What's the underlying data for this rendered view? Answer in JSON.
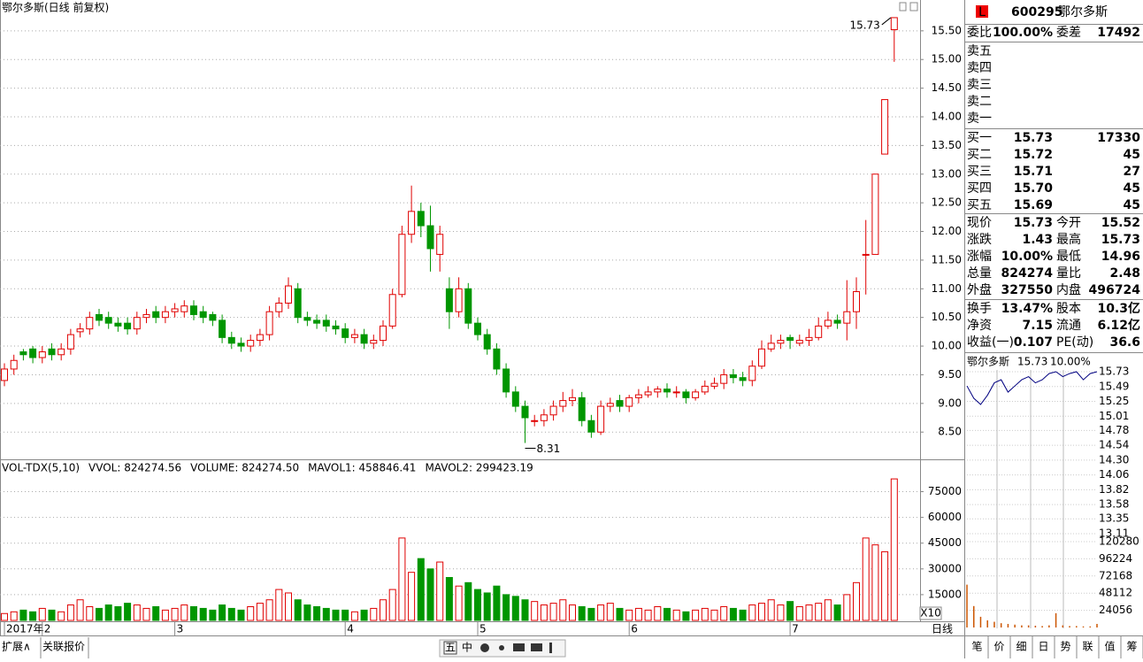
{
  "chart_data": [
    {
      "type": "candlestick",
      "title": "鄂尔多斯(日线 前复权)",
      "categories": [
        "2017年",
        null,
        null,
        null,
        "2",
        null,
        null,
        null,
        null,
        null,
        null,
        null,
        null,
        null,
        null,
        null,
        null,
        null,
        "3",
        null,
        null,
        null,
        null,
        null,
        null,
        null,
        null,
        null,
        null,
        null,
        null,
        null,
        null,
        null,
        null,
        null,
        "4",
        null,
        null,
        null,
        null,
        null,
        null,
        null,
        null,
        null,
        null,
        null,
        null,
        null,
        "5",
        null,
        null,
        null,
        null,
        null,
        null,
        null,
        null,
        null,
        null,
        null,
        null,
        null,
        null,
        null,
        "6",
        null,
        null,
        null,
        null,
        null,
        null,
        null,
        null,
        null,
        null,
        null,
        null,
        null,
        null,
        null,
        null,
        "7",
        null,
        null,
        null,
        null,
        null,
        null,
        null,
        null,
        null,
        null,
        null
      ],
      "open": [
        9.4,
        9.6,
        9.9,
        9.95,
        9.8,
        9.95,
        9.85,
        9.95,
        10.25,
        10.3,
        10.55,
        10.5,
        10.4,
        10.4,
        10.3,
        10.5,
        10.6,
        10.5,
        10.6,
        10.6,
        10.7,
        10.6,
        10.55,
        10.45,
        10.15,
        10.05,
        10.0,
        10.1,
        10.2,
        10.6,
        10.75,
        11.0,
        10.5,
        10.45,
        10.45,
        10.35,
        10.3,
        10.15,
        10.2,
        10.05,
        10.1,
        10.35,
        10.9,
        11.95,
        12.35,
        12.1,
        11.6,
        11.0,
        10.6,
        11.0,
        10.4,
        10.2,
        9.95,
        9.6,
        9.2,
        8.95,
        8.7,
        8.7,
        8.8,
        8.95,
        9.05,
        9.1,
        8.7,
        8.5,
        8.95,
        9.05,
        8.95,
        9.1,
        9.15,
        9.2,
        9.25,
        9.2,
        9.2,
        9.1,
        9.2,
        9.3,
        9.35,
        9.5,
        9.45,
        9.4,
        9.65,
        9.95,
        10.05,
        10.15,
        10.05,
        10.1,
        10.15,
        10.35,
        10.45,
        10.4,
        10.6,
        11.6,
        11.6,
        13.35,
        15.52
      ],
      "high": [
        9.7,
        9.85,
        9.95,
        10.0,
        10.0,
        10.05,
        10.05,
        10.3,
        10.4,
        10.6,
        10.65,
        10.6,
        10.5,
        10.5,
        10.6,
        10.65,
        10.7,
        10.7,
        10.75,
        10.8,
        10.8,
        10.7,
        10.6,
        10.55,
        10.25,
        10.15,
        10.2,
        10.3,
        10.7,
        10.85,
        11.2,
        11.1,
        10.6,
        10.55,
        10.55,
        10.45,
        10.4,
        10.3,
        10.3,
        10.2,
        10.45,
        11.0,
        12.1,
        12.8,
        12.5,
        12.45,
        12.1,
        11.2,
        11.2,
        11.1,
        10.5,
        10.3,
        10.05,
        9.7,
        9.3,
        9.05,
        8.8,
        8.9,
        9.05,
        9.2,
        9.25,
        9.2,
        8.8,
        9.05,
        9.1,
        9.15,
        9.15,
        9.25,
        9.3,
        9.3,
        9.35,
        9.3,
        9.25,
        9.25,
        9.4,
        9.45,
        9.6,
        9.6,
        9.55,
        9.75,
        10.1,
        10.2,
        10.2,
        10.2,
        10.2,
        10.3,
        10.5,
        10.6,
        10.55,
        11.15,
        11.2,
        12.2,
        13.0,
        14.3,
        15.73
      ],
      "low": [
        9.3,
        9.5,
        9.75,
        9.7,
        9.7,
        9.75,
        9.75,
        9.85,
        10.15,
        10.2,
        10.35,
        10.3,
        10.25,
        10.2,
        10.2,
        10.4,
        10.4,
        10.4,
        10.5,
        10.5,
        10.45,
        10.4,
        10.35,
        10.05,
        9.95,
        9.9,
        9.9,
        10.0,
        10.1,
        10.5,
        10.65,
        10.4,
        10.35,
        10.3,
        10.25,
        10.2,
        10.05,
        10.05,
        9.95,
        9.95,
        10.0,
        10.3,
        10.85,
        11.8,
        11.9,
        11.3,
        11.3,
        10.3,
        10.5,
        10.3,
        10.1,
        9.85,
        9.5,
        9.1,
        8.85,
        8.31,
        8.6,
        8.6,
        8.7,
        8.85,
        8.95,
        8.6,
        8.4,
        8.45,
        8.85,
        8.85,
        8.85,
        9.0,
        9.1,
        9.1,
        9.1,
        9.1,
        9.0,
        9.05,
        9.15,
        9.25,
        9.25,
        9.35,
        9.3,
        9.3,
        9.6,
        9.9,
        9.95,
        9.95,
        10.0,
        10.0,
        10.1,
        10.3,
        10.3,
        10.1,
        10.3,
        10.9,
        11.6,
        13.35,
        14.96
      ],
      "close": [
        9.6,
        9.75,
        9.85,
        9.8,
        9.9,
        9.85,
        9.95,
        10.2,
        10.3,
        10.5,
        10.45,
        10.4,
        10.35,
        10.3,
        10.5,
        10.55,
        10.5,
        10.6,
        10.65,
        10.7,
        10.55,
        10.5,
        10.45,
        10.15,
        10.05,
        10.0,
        10.1,
        10.2,
        10.6,
        10.75,
        11.05,
        10.5,
        10.45,
        10.4,
        10.35,
        10.3,
        10.15,
        10.2,
        10.05,
        10.1,
        10.35,
        10.9,
        11.95,
        12.35,
        12.1,
        11.7,
        11.95,
        10.6,
        11.0,
        10.4,
        10.2,
        9.95,
        9.6,
        9.2,
        8.95,
        8.75,
        8.7,
        8.8,
        8.95,
        9.05,
        9.1,
        8.7,
        8.5,
        8.95,
        9.0,
        8.95,
        9.1,
        9.15,
        9.2,
        9.25,
        9.2,
        9.2,
        9.1,
        9.2,
        9.3,
        9.35,
        9.5,
        9.45,
        9.4,
        9.65,
        9.95,
        10.05,
        10.1,
        10.1,
        10.1,
        10.15,
        10.35,
        10.45,
        10.4,
        10.6,
        10.95,
        11.6,
        13.0,
        14.3,
        15.73
      ],
      "max_label": "15.73",
      "min_label": "8.31",
      "ylim": [
        8.04,
        15.76
      ],
      "yticks": [
        {
          "value": 15.5,
          "label": "15.50"
        },
        {
          "value": 15,
          "label": "15.00"
        },
        {
          "value": 14.5,
          "label": "14.50"
        },
        {
          "value": 14,
          "label": "14.00"
        },
        {
          "value": 13.5,
          "label": "13.50"
        },
        {
          "value": 13,
          "label": "13.00"
        },
        {
          "value": 12.5,
          "label": "12.50"
        },
        {
          "value": 12,
          "label": "12.00"
        },
        {
          "value": 11.5,
          "label": "11.50"
        },
        {
          "value": 11,
          "label": "11.00"
        },
        {
          "value": 10.5,
          "label": "10.50"
        },
        {
          "value": 10,
          "label": "10.00"
        },
        {
          "value": 9.5,
          "label": "9.50"
        },
        {
          "value": 9,
          "label": "9.00"
        },
        {
          "value": 8.5,
          "label": "8.50"
        }
      ],
      "grid": true,
      "up_color": "#e00000",
      "down_color": "#009600",
      "x_axis_name": "日线"
    },
    {
      "type": "bar",
      "legend": [
        "VOL-TDX(5,10)",
        "VVOL: 824274.56",
        "VOLUME: 824274.50",
        "MAVOL1: 458846.41",
        "MAVOL2: 299423.19"
      ],
      "values": [
        4000,
        5000,
        6000,
        5000,
        7000,
        6000,
        5000,
        9000,
        12000,
        8000,
        7000,
        9000,
        8000,
        10000,
        9000,
        7000,
        8000,
        6000,
        7000,
        9000,
        8000,
        7000,
        6000,
        9000,
        7000,
        6000,
        8000,
        10000,
        12000,
        18000,
        16000,
        12000,
        9000,
        8000,
        7000,
        6000,
        6000,
        5000,
        6000,
        7000,
        12000,
        18000,
        48000,
        28000,
        36000,
        30000,
        34000,
        25000,
        20000,
        22000,
        18000,
        16000,
        20000,
        15000,
        14000,
        12000,
        11000,
        9000,
        10000,
        12000,
        9000,
        8000,
        7000,
        9000,
        10000,
        7000,
        6000,
        7000,
        6000,
        8000,
        7000,
        6000,
        5000,
        6000,
        7000,
        6000,
        8000,
        7000,
        6000,
        9000,
        10000,
        12000,
        9000,
        11000,
        8000,
        9000,
        10000,
        12000,
        9000,
        15000,
        22000,
        48000,
        44000,
        40000,
        82427
      ],
      "ylim": [
        0,
        83000
      ],
      "yticks": [
        75000,
        60000,
        45000,
        30000,
        15000
      ],
      "multiplier": "X10",
      "grid": true
    },
    {
      "type": "line",
      "name": "鄂尔多斯",
      "price": "15.73",
      "change": "10.00%",
      "color": "#000080",
      "values": [
        15.5,
        15.3,
        15.2,
        15.35,
        15.55,
        15.6,
        15.4,
        15.5,
        15.6,
        15.65,
        15.55,
        15.6,
        15.7,
        15.73,
        15.65,
        15.7,
        15.73,
        15.6,
        15.7,
        15.73
      ],
      "ylim": [
        13.11,
        15.73
      ],
      "yticks": [
        15.73,
        15.49,
        15.25,
        15.01,
        14.78,
        14.54,
        {
          "value": 14.3,
          "label": "14.30"
        },
        14.06,
        13.82,
        13.58,
        13.35,
        13.11
      ]
    },
    {
      "type": "bar",
      "color": "#cc5500",
      "values": [
        60000,
        30000,
        15000,
        10000,
        8000,
        6000,
        5000,
        4000,
        3000,
        3000,
        2500,
        2000,
        3000,
        20000,
        3000,
        2000,
        2000,
        1500,
        1500,
        5000
      ],
      "ylim": [
        0,
        131400
      ],
      "yticks": [
        120280,
        96224,
        72168,
        48112,
        24056
      ]
    }
  ],
  "quote": {
    "badge": "L",
    "code": "600295",
    "name": "鄂尔多斯",
    "ratio": [
      "委比",
      "100.00%",
      "委差",
      "17492"
    ],
    "sell": [
      "卖五",
      "卖四",
      "卖三",
      "卖二",
      "卖一"
    ],
    "buy": [
      [
        "买一",
        "15.73",
        "17330"
      ],
      [
        "买二",
        "15.72",
        "45"
      ],
      [
        "买三",
        "15.71",
        "27"
      ],
      [
        "买四",
        "15.70",
        "45"
      ],
      [
        "买五",
        "15.69",
        "45"
      ]
    ],
    "stats": [
      [
        "现价",
        "15.73",
        "今开",
        "15.52"
      ],
      [
        "涨跌",
        "1.43",
        "最高",
        "15.73"
      ],
      [
        "涨幅",
        "10.00%",
        "最低",
        "14.96"
      ],
      [
        "总量",
        "824274",
        "量比",
        "2.48"
      ],
      [
        "外盘",
        "327550",
        "内盘",
        "496724"
      ],
      [
        "换手",
        "13.47%",
        "股本",
        "10.3亿"
      ],
      [
        "净资",
        "7.15",
        "流通",
        "6.12亿"
      ],
      [
        "收益(一)",
        "0.107",
        "PE(动)",
        "36.6"
      ]
    ]
  },
  "footer": {
    "left": [
      "扩展∧",
      "关联报价"
    ],
    "tools": [
      "五",
      "中"
    ],
    "tabs": [
      "笔",
      "价",
      "细",
      "日",
      "势",
      "联",
      "值",
      "筹"
    ]
  }
}
